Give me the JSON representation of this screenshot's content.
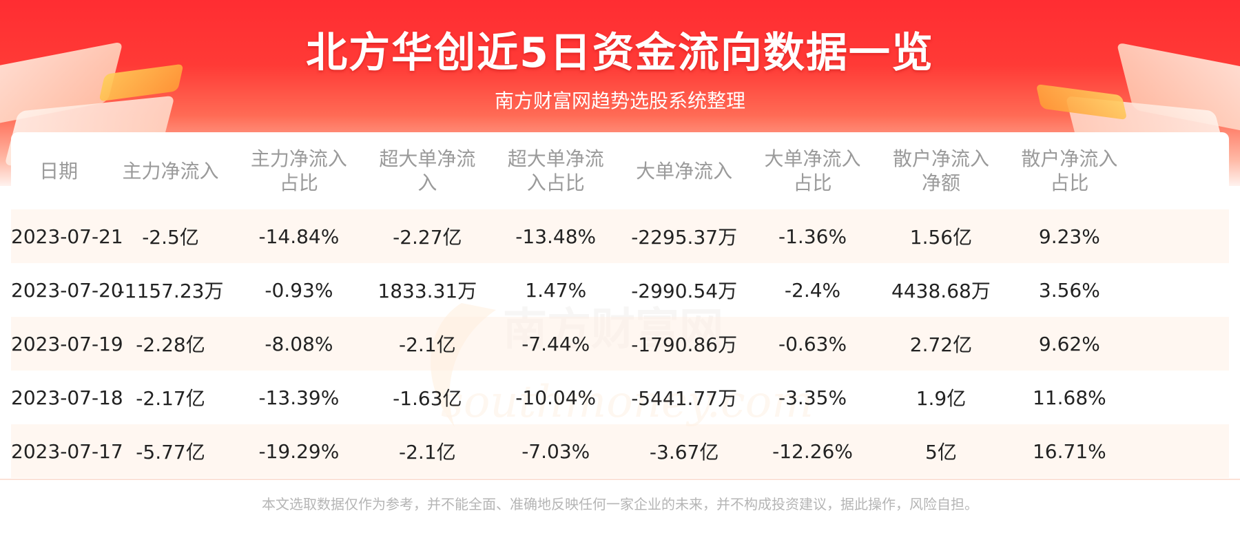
{
  "header": {
    "title": "北方华创近5日资金流向数据一览",
    "subtitle": "南方财富网趋势选股系统整理"
  },
  "table": {
    "headers": [
      [
        "日期"
      ],
      [
        "主力净流入"
      ],
      [
        "主力净流入",
        "占比"
      ],
      [
        "超大单净流",
        "入"
      ],
      [
        "超大单净流",
        "入占比"
      ],
      [
        "大单净流入"
      ],
      [
        "大单净流入",
        "占比"
      ],
      [
        "散户净流入",
        "净额"
      ],
      [
        "散户净流入",
        "占比"
      ]
    ],
    "rows": [
      [
        "2023-07-21",
        "-2.5亿",
        "-14.84%",
        "-2.27亿",
        "-13.48%",
        "-2295.37万",
        "-1.36%",
        "1.56亿",
        "9.23%"
      ],
      [
        "2023-07-20",
        "-1157.23万",
        "-0.93%",
        "1833.31万",
        "1.47%",
        "-2990.54万",
        "-2.4%",
        "4438.68万",
        "3.56%"
      ],
      [
        "2023-07-19",
        "-2.28亿",
        "-8.08%",
        "-2.1亿",
        "-7.44%",
        "-1790.86万",
        "-0.63%",
        "2.72亿",
        "9.62%"
      ],
      [
        "2023-07-18",
        "-2.17亿",
        "-13.39%",
        "-1.63亿",
        "-10.04%",
        "-5441.77万",
        "-3.35%",
        "1.9亿",
        "11.68%"
      ],
      [
        "2023-07-17",
        "-5.77亿",
        "-19.29%",
        "-2.1亿",
        "-7.03%",
        "-3.67亿",
        "-12.26%",
        "5亿",
        "16.71%"
      ]
    ]
  },
  "watermark": {
    "cn": "南方财富网",
    "en": "southmoney.com"
  },
  "footer": {
    "disclaimer": "本文选取数据仅作为参考，并不能全面、准确地反映任何一家企业的未来，并不构成投资建议，据此操作，风险自担。"
  },
  "colors": {
    "banner_red": "#ff2d32",
    "row_tint": "#fff4ec",
    "header_text": "#9a9a9a",
    "cell_text": "#222222"
  }
}
